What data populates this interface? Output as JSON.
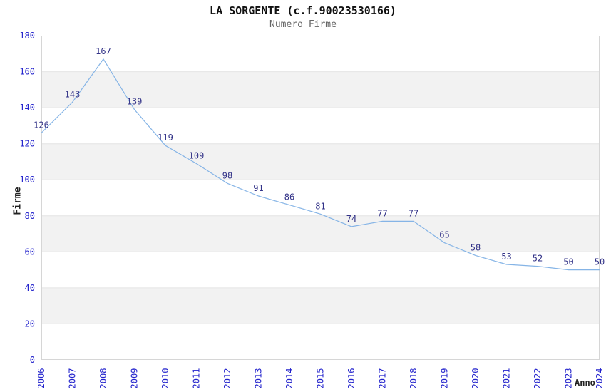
{
  "page": {
    "background": "#ffffff"
  },
  "chart_data": {
    "type": "line",
    "title": "LA SORGENTE (c.f.90023530166)",
    "subtitle": "Numero Firme",
    "xlabel": "Anno",
    "ylabel": "Firme",
    "categories": [
      "2006",
      "2007",
      "2008",
      "2009",
      "2010",
      "2011",
      "2012",
      "2013",
      "2014",
      "2015",
      "2016",
      "2017",
      "2018",
      "2019",
      "2020",
      "2021",
      "2022",
      "2023",
      "2024"
    ],
    "series": [
      {
        "name": "Numero Firme",
        "values": [
          126,
          143,
          167,
          139,
          119,
          109,
          98,
          91,
          86,
          81,
          74,
          77,
          77,
          65,
          58,
          53,
          52,
          50,
          50
        ]
      }
    ],
    "ylim": [
      0,
      180
    ],
    "yticks": [
      0,
      20,
      40,
      60,
      80,
      100,
      120,
      140,
      160,
      180
    ],
    "grid": "horizontal-bands",
    "legend": "none",
    "data_labels": true,
    "colors": {
      "line": "#85b4e6",
      "axis_label": "#2222cc",
      "data_label": "#333388",
      "band": "#f2f2f2",
      "gridline": "#e4e4e4",
      "plot_border": "#d6d6d6",
      "title": "#111111",
      "subtitle": "#666666",
      "axis_title": "#222222"
    }
  }
}
